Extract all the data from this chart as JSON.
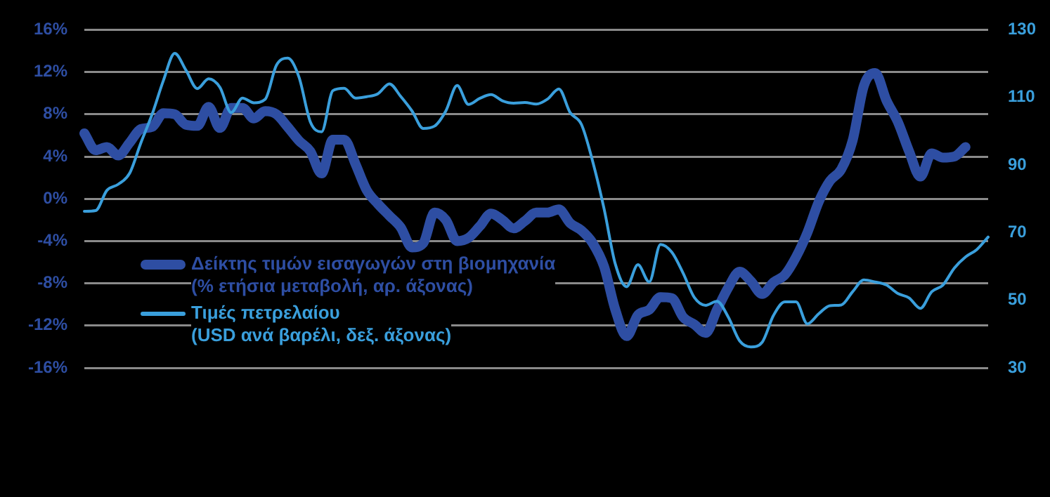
{
  "chart_data": {
    "type": "line",
    "categories": [
      null,
      null,
      null,
      null,
      null,
      null,
      null,
      null,
      null,
      null,
      null,
      null,
      null,
      null,
      null,
      null,
      null,
      null,
      null,
      null,
      null,
      null,
      null,
      null,
      null,
      null,
      null,
      null,
      null,
      null,
      null,
      null,
      null,
      null,
      null,
      null,
      null,
      null,
      null,
      null,
      null,
      null,
      null,
      null,
      null,
      null,
      null,
      null,
      null,
      null,
      null,
      null,
      null,
      null,
      null,
      null,
      null,
      null,
      null,
      null,
      null,
      null,
      null,
      null,
      null,
      null,
      null,
      null,
      null,
      null,
      null,
      null,
      null,
      null,
      null,
      null,
      null,
      null,
      null,
      null,
      null
    ],
    "series": [
      {
        "name": "Δείκτης τιμών εισαγωγών στη βιομηχανία\n(% ετήσια μεταβολή, αρ. άξονας)",
        "color": "#2e4ea3",
        "values": [
          6.2,
          4.6,
          4.9,
          4.1,
          5.3,
          6.6,
          6.8,
          8.1,
          8.0,
          7.0,
          6.9,
          8.7,
          6.7,
          8.6,
          8.6,
          7.6,
          8.3,
          8.0,
          6.8,
          5.5,
          4.5,
          2.4,
          5.6,
          5.6,
          3.3,
          0.8,
          -0.5,
          -1.6,
          -2.7,
          -4.6,
          -4.2,
          -1.3,
          -2.0,
          -4.0,
          -3.7,
          -2.6,
          -1.4,
          -2.0,
          -2.8,
          -2.1,
          -1.3,
          -1.3,
          -1.0,
          -2.3,
          -3.0,
          -4.2,
          -6.4,
          -10.5,
          -13.0,
          -11.0,
          -10.5,
          -9.3,
          -9.4,
          -11.2,
          -11.9,
          -12.7,
          -10.5,
          -8.4,
          -6.9,
          -7.8,
          -9.0,
          -7.9,
          -7.2,
          -5.5,
          -3.2,
          -0.3,
          1.7,
          2.8,
          5.5,
          10.7,
          11.9,
          9.3,
          7.3,
          4.5,
          2.1,
          4.3,
          3.9,
          4.0,
          4.9,
          null,
          null
        ]
      },
      {
        "name": "Τιμές πετρελαίου\n(USD ανά βαρέλι, δεξ. άξονας)",
        "color": "#3a9fdc",
        "axis": "y2",
        "values": [
          76.3,
          76.5,
          82.5,
          84.3,
          87.5,
          96.5,
          105,
          115,
          123,
          118,
          112.6,
          115.5,
          113,
          105.5,
          109.8,
          108.4,
          109.4,
          119.5,
          121.6,
          116,
          102.8,
          99.8,
          112,
          112.7,
          109.8,
          110.2,
          111.1,
          114,
          110.3,
          106,
          100.8,
          101.5,
          106,
          113.5,
          107.9,
          109.7,
          110.8,
          109,
          108.3,
          108.5,
          108,
          109.5,
          112.5,
          105.5,
          102,
          91,
          77.1,
          60.7,
          54,
          60.5,
          55.4,
          66.5,
          64.2,
          58,
          50.8,
          48.5,
          49.7,
          45,
          38,
          36.2,
          37.6,
          45.5,
          49.5,
          49.5,
          43,
          46,
          48.4,
          48.6,
          52.5,
          56,
          55.4,
          54.5,
          52,
          50.7,
          47.6,
          52.5,
          54.5,
          59.5,
          62.8,
          65,
          68.7
        ]
      }
    ],
    "ylim": [
      -16,
      16
    ],
    "yticks": [
      {
        "value": -16,
        "label": "-16%"
      },
      {
        "value": -12,
        "label": "-12%"
      },
      {
        "value": -8,
        "label": "-8%"
      },
      {
        "value": -4,
        "label": "-4%"
      },
      {
        "value": 0,
        "label": "0%"
      },
      {
        "value": 4,
        "label": "4%"
      },
      {
        "value": 8,
        "label": "8%"
      },
      {
        "value": 12,
        "label": "12%"
      },
      {
        "value": 16,
        "label": "16%"
      }
    ],
    "y2lim": [
      30,
      130
    ],
    "y2ticks": [
      30,
      50,
      70,
      90,
      110,
      130
    ],
    "grid": "y",
    "legend": "bottom left",
    "marker": "none",
    "line_style": "solid"
  }
}
